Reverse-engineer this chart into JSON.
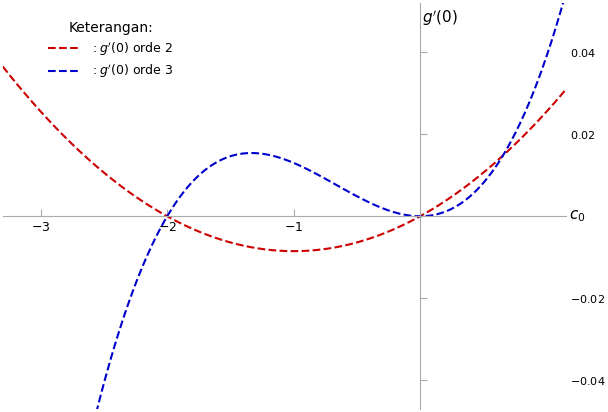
{
  "x_min": -3.3,
  "x_max": 1.15,
  "y_min": -0.047,
  "y_max": 0.052,
  "x_ticks": [
    -3,
    -2,
    -1
  ],
  "y_ticks": [
    0.04,
    0.02,
    -0.02,
    -0.04
  ],
  "x_label": "c_0",
  "y_label": "g(0)",
  "legend_title": "Keterangan:",
  "color_red": "#cc0000",
  "color_blue": "#0000cc",
  "background": "#ffffff",
  "a_red": 0.0085,
  "b_blue": 0.013
}
